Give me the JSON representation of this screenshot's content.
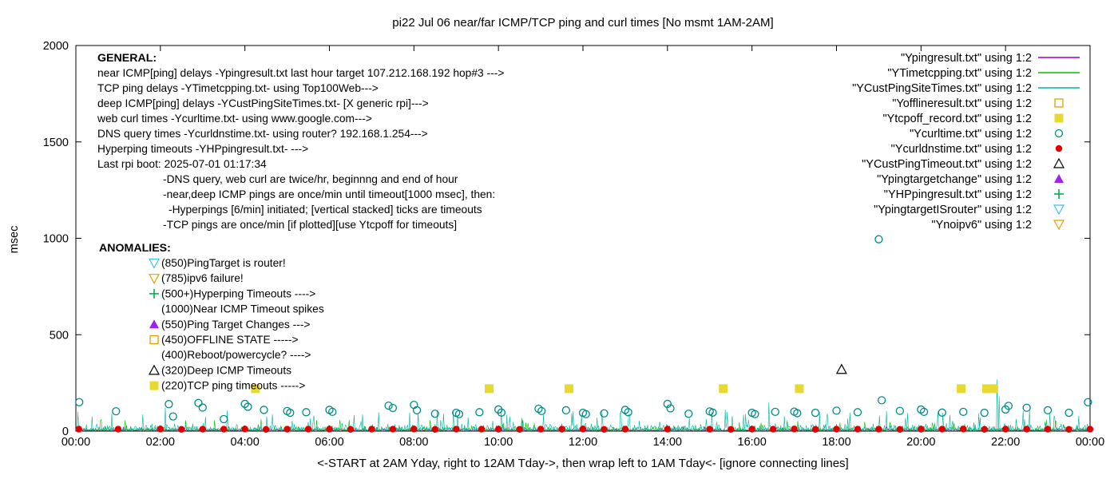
{
  "title": "pi22 Jul 06  near/far ICMP/TCP ping and curl times [No msmt 1AM-2AM]",
  "ylabel": "msec",
  "x_caption": "<-START at 2AM Yday, right to 12AM Tday->, then wrap left to 1AM Tday<- [ignore connecting lines]",
  "axes": {
    "x_hours": 24,
    "x_tick_labels": [
      "00:00",
      "02:00",
      "04:00",
      "06:00",
      "08:00",
      "10:00",
      "12:00",
      "14:00",
      "16:00",
      "18:00",
      "20:00",
      "22:00",
      "00:00"
    ],
    "y_ticks": [
      0,
      500,
      1000,
      1500,
      2000
    ],
    "y_max": 2000,
    "grid": false
  },
  "legend": {
    "position": "top-right-inside",
    "entries": [
      {
        "label": "\"Ypingresult.txt\" using 1:2",
        "sample": "line",
        "color": "#9400d3"
      },
      {
        "label": "\"YTimetcpping.txt\" using 1:2",
        "sample": "line",
        "color": "#00c000"
      },
      {
        "label": "\"YCustPingSiteTimes.txt\" using 1:2",
        "sample": "line",
        "color": "#00b2a0"
      },
      {
        "label": "\"Yofflineresult.txt\" using 1:2",
        "sample": "square-open",
        "color": "#e69f00"
      },
      {
        "label": "\"Ytcpoff_record.txt\" using 1:2",
        "sample": "square-filled",
        "color": "#e8d930"
      },
      {
        "label": "\"Ycurltime.txt\" using 1:2",
        "sample": "circle-open",
        "color": "#008b8b"
      },
      {
        "label": "\"Ycurldnstime.txt\" using 1:2",
        "sample": "circle-filled",
        "color": "#e00000"
      },
      {
        "label": "\"YCustPingTimeout.txt\" using 1:2",
        "sample": "triangle-up-open",
        "color": "#000000"
      },
      {
        "label": "\"Ypingtargetchange\" using 1:2",
        "sample": "triangle-up-filled",
        "color": "#a020f0"
      },
      {
        "label": "\"YHPpingresult.txt\" using 1:2",
        "sample": "plus",
        "color": "#00b050"
      },
      {
        "label": "\"YpingtargetISrouter\" using 1:2",
        "sample": "triangle-down-open",
        "color": "#40c0e0"
      },
      {
        "label": "\"Ynoipv6\" using 1:2",
        "sample": "triangle-down-open",
        "color": "#e69f00"
      }
    ]
  },
  "general": {
    "header": "GENERAL:",
    "lines": [
      {
        "indent": 0,
        "text": "near ICMP[ping] delays -Ypingresult.txt last hour target 107.212.168.192 hop#3 --->"
      },
      {
        "indent": 0,
        "text": "TCP ping delays -YTimetcpping.txt- using Top100Web--->"
      },
      {
        "indent": 0,
        "text": "deep ICMP[ping] delays -YCustPingSiteTimes.txt- [X generic rpi]--->"
      },
      {
        "indent": 0,
        "text": "web curl times -Ycurltime.txt- using www.google.com--->"
      },
      {
        "indent": 0,
        "text": "DNS query times -Ycurldnstime.txt- using router? 192.168.1.254--->"
      },
      {
        "indent": 0,
        "text": "Hyperping timeouts -YHPpingresult.txt- --->"
      },
      {
        "indent": 0,
        "text": "Last rpi boot: 2025-07-01 01:17:34"
      },
      {
        "indent": 1,
        "text": "-DNS query, web curl are twice/hr, beginnng and end of hour"
      },
      {
        "indent": 1,
        "text": "-near,deep ICMP pings are once/min until timeout[1000 msec], then:"
      },
      {
        "indent": 2,
        "text": "-Hyperpings [6/min] initiated; [vertical stacked] ticks are timeouts"
      },
      {
        "indent": 1,
        "text": "-TCP pings are once/min [if plotted][use Ytcpoff for timeouts]"
      }
    ]
  },
  "anomalies": {
    "header": "ANOMALIES:",
    "items": [
      {
        "marker": "triangle-down-open",
        "color": "#40c0e0",
        "text": "(850)PingTarget is router!"
      },
      {
        "marker": "triangle-down-open",
        "color": "#e69f00",
        "text": "(785)ipv6 failure!"
      },
      {
        "marker": "plus",
        "color": "#00b050",
        "text": "(500+)Hyperping Timeouts ---->"
      },
      {
        "marker": "none",
        "color": "",
        "text": "(1000)Near ICMP Timeout spikes"
      },
      {
        "marker": "triangle-up-filled",
        "color": "#a020f0",
        "text": "(550)Ping Target Changes --->"
      },
      {
        "marker": "square-open",
        "color": "#e69f00",
        "text": "(450)OFFLINE STATE ----->"
      },
      {
        "marker": "none",
        "color": "",
        "text": "(400)Reboot/powercycle? ---->"
      },
      {
        "marker": "triangle-up-open",
        "color": "#000000",
        "text": "(320)Deep ICMP Timeouts"
      },
      {
        "marker": "square-filled",
        "color": "#e8d930",
        "text": "(220)TCP ping timeouts ----->"
      }
    ]
  },
  "chart_data": {
    "type": "line",
    "x_unit": "hours_0_to_24",
    "xlim": [
      0,
      24
    ],
    "ylim": [
      0,
      2000
    ],
    "series": [
      {
        "name": "Ypingresult.txt",
        "style": "line",
        "color": "#9400d3",
        "render": "noise",
        "seed": 11,
        "baseline": 3,
        "jitter": 10,
        "spike_chance": 0.01,
        "spike_max": 25,
        "spikes": []
      },
      {
        "name": "YTimetcpping.txt",
        "style": "line",
        "color": "#00c000",
        "render": "noise",
        "seed": 22,
        "baseline": 2,
        "jitter": 25,
        "spike_chance": 0.05,
        "spike_max": 60,
        "spikes": []
      },
      {
        "name": "YCustPingSiteTimes.txt",
        "style": "line",
        "color": "#00b2a0",
        "render": "noise",
        "seed": 33,
        "baseline": 2,
        "jitter": 40,
        "spike_chance": 0.08,
        "spike_max": 110,
        "spikes": [
          [
            2.12,
            122
          ],
          [
            7.9,
            96
          ],
          [
            12.9,
            104
          ],
          [
            16.4,
            148
          ],
          [
            19.02,
            80
          ],
          [
            21.8,
            268
          ],
          [
            21.85,
            180
          ],
          [
            23.05,
            96
          ]
        ]
      },
      {
        "name": "Ycurltime.txt",
        "style": "circle-open",
        "color": "#008b8b",
        "points": [
          [
            0.08,
            150
          ],
          [
            0.95,
            103
          ],
          [
            2.2,
            140
          ],
          [
            2.3,
            76
          ],
          [
            2.9,
            146
          ],
          [
            3.0,
            122
          ],
          [
            3.5,
            62
          ],
          [
            4.0,
            141
          ],
          [
            4.07,
            126
          ],
          [
            4.45,
            110
          ],
          [
            5.0,
            104
          ],
          [
            5.07,
            95
          ],
          [
            5.45,
            98
          ],
          [
            6.0,
            110
          ],
          [
            6.07,
            100
          ],
          [
            7.4,
            132
          ],
          [
            7.5,
            120
          ],
          [
            8.0,
            136
          ],
          [
            8.07,
            108
          ],
          [
            8.5,
            90
          ],
          [
            9.0,
            95
          ],
          [
            9.07,
            88
          ],
          [
            9.55,
            98
          ],
          [
            10.0,
            112
          ],
          [
            10.07,
            96
          ],
          [
            10.95,
            116
          ],
          [
            11.02,
            104
          ],
          [
            11.6,
            108
          ],
          [
            12.0,
            95
          ],
          [
            12.07,
            88
          ],
          [
            12.5,
            92
          ],
          [
            13.0,
            110
          ],
          [
            13.07,
            98
          ],
          [
            14.0,
            141
          ],
          [
            14.07,
            118
          ],
          [
            14.5,
            90
          ],
          [
            15.0,
            102
          ],
          [
            15.07,
            96
          ],
          [
            16.0,
            95
          ],
          [
            16.07,
            88
          ],
          [
            16.55,
            100
          ],
          [
            17.0,
            101
          ],
          [
            17.07,
            93
          ],
          [
            17.5,
            95
          ],
          [
            18.0,
            106
          ],
          [
            18.5,
            98
          ],
          [
            19.0,
            995
          ],
          [
            19.07,
            160
          ],
          [
            19.5,
            105
          ],
          [
            20.0,
            112
          ],
          [
            20.07,
            100
          ],
          [
            20.5,
            96
          ],
          [
            21.0,
            100
          ],
          [
            21.5,
            95
          ],
          [
            22.0,
            112
          ],
          [
            22.07,
            131
          ],
          [
            22.5,
            121
          ],
          [
            23.0,
            108
          ],
          [
            23.5,
            95
          ],
          [
            23.95,
            150
          ]
        ]
      },
      {
        "name": "Ycurldnstime.txt",
        "style": "circle-filled",
        "color": "#e00000",
        "points": [
          [
            0.07,
            10
          ],
          [
            1.0,
            10
          ],
          [
            2.0,
            11
          ],
          [
            2.5,
            9
          ],
          [
            3.0,
            10
          ],
          [
            3.5,
            10
          ],
          [
            4.0,
            11
          ],
          [
            4.5,
            9
          ],
          [
            5.0,
            10
          ],
          [
            5.5,
            10
          ],
          [
            6.0,
            10
          ],
          [
            6.5,
            9
          ],
          [
            7.0,
            10
          ],
          [
            7.5,
            10
          ],
          [
            8.0,
            11
          ],
          [
            8.5,
            9
          ],
          [
            9.0,
            10
          ],
          [
            9.6,
            10
          ],
          [
            10.0,
            10
          ],
          [
            10.5,
            9
          ],
          [
            11.0,
            10
          ],
          [
            11.5,
            10
          ],
          [
            12.0,
            11
          ],
          [
            12.5,
            9
          ],
          [
            13.0,
            10
          ],
          [
            14.0,
            10
          ],
          [
            15.0,
            10
          ],
          [
            15.5,
            9
          ],
          [
            16.0,
            10
          ],
          [
            16.5,
            10
          ],
          [
            17.0,
            11
          ],
          [
            17.5,
            9
          ],
          [
            18.0,
            10
          ],
          [
            18.5,
            10
          ],
          [
            19.0,
            10
          ],
          [
            19.5,
            9
          ],
          [
            20.0,
            10
          ],
          [
            20.5,
            10
          ],
          [
            21.0,
            11
          ],
          [
            21.5,
            9
          ],
          [
            22.0,
            10
          ],
          [
            22.5,
            10
          ],
          [
            23.0,
            10
          ],
          [
            23.5,
            9
          ],
          [
            24.0,
            10
          ]
        ]
      },
      {
        "name": "Ytcpoff_record.txt",
        "style": "square-filled",
        "color": "#e8d930",
        "points": [
          [
            4.25,
            220
          ],
          [
            9.78,
            220
          ],
          [
            11.67,
            220
          ],
          [
            15.32,
            220
          ],
          [
            17.12,
            220
          ],
          [
            20.95,
            220
          ],
          [
            21.55,
            220
          ],
          [
            21.72,
            220
          ]
        ]
      },
      {
        "name": "YCustPingTimeout.txt",
        "style": "triangle-up-open",
        "color": "#000000",
        "points": [
          [
            18.12,
            320
          ]
        ]
      },
      {
        "name": "Yofflineresult.txt",
        "style": "square-open",
        "color": "#e69f00",
        "points": []
      },
      {
        "name": "Ypingtargetchange",
        "style": "triangle-up-filled",
        "color": "#a020f0",
        "points": []
      },
      {
        "name": "YHPpingresult.txt",
        "style": "plus",
        "color": "#00b050",
        "points": []
      },
      {
        "name": "YpingtargetISrouter",
        "style": "triangle-down-open",
        "color": "#40c0e0",
        "points": []
      },
      {
        "name": "Ynoipv6",
        "style": "triangle-down-open",
        "color": "#e69f00",
        "points": []
      }
    ]
  }
}
